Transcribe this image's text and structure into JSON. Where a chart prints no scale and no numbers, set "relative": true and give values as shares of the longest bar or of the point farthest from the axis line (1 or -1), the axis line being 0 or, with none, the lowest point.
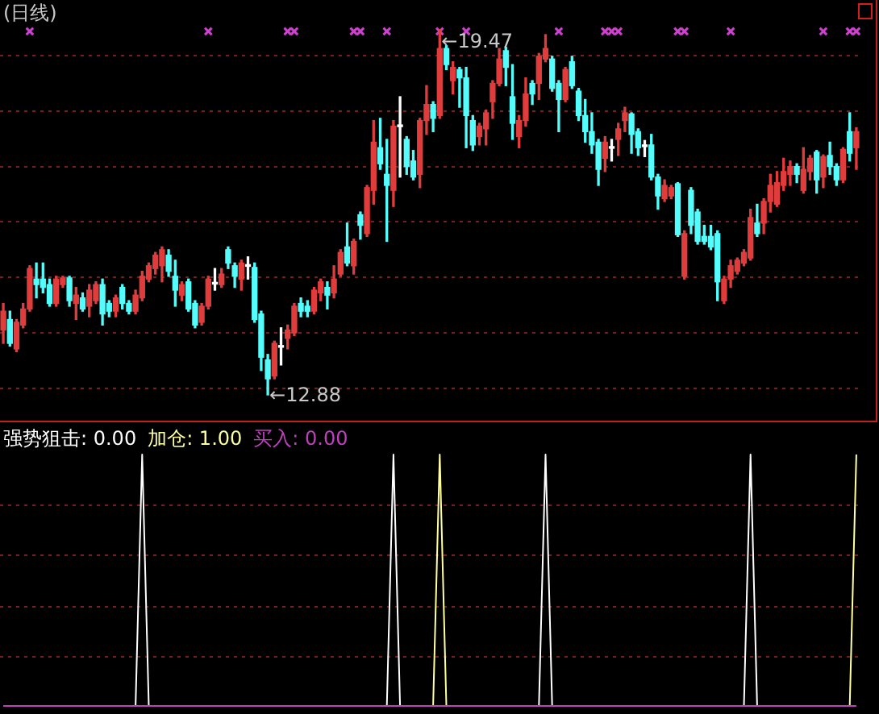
{
  "chart_data": [
    {
      "type": "candlestick",
      "title": "(日线)",
      "categories": [
        null,
        null,
        null,
        null,
        null,
        null,
        null,
        null,
        null,
        null,
        null,
        null,
        null,
        null,
        null,
        null,
        null,
        null,
        null,
        null,
        null,
        null,
        null,
        null,
        null,
        null,
        null,
        null,
        null,
        null,
        null,
        null,
        null,
        null,
        null,
        null,
        null,
        null,
        null,
        null,
        null,
        null,
        null,
        null,
        null,
        null,
        null,
        null,
        null,
        null,
        null,
        null,
        null,
        null,
        null,
        null,
        null,
        null,
        null,
        null,
        null,
        null,
        null,
        null,
        null,
        null,
        null,
        null,
        null,
        null,
        null,
        null,
        null,
        null,
        null,
        null,
        null,
        null,
        null,
        null,
        null,
        null,
        null,
        null,
        null,
        null,
        null,
        null,
        null,
        null,
        null,
        null,
        null,
        null,
        null,
        null,
        null,
        null,
        null,
        null,
        null,
        null,
        null,
        null,
        null,
        null,
        null,
        null,
        null,
        null,
        null,
        null,
        null,
        null,
        null,
        null,
        null,
        null,
        null,
        null,
        null,
        null,
        null,
        null,
        null,
        null,
        null,
        null,
        null,
        null
      ],
      "ohlc": [
        [
          14.05,
          14.53,
          13.81,
          14.39
        ],
        [
          14.24,
          14.39,
          13.76,
          13.81
        ],
        [
          13.71,
          14.24,
          13.66,
          14.19
        ],
        [
          14.14,
          14.53,
          14.09,
          14.43
        ],
        [
          14.43,
          15.21,
          14.39,
          15.16
        ],
        [
          14.97,
          15.26,
          14.63,
          14.87
        ],
        [
          14.97,
          15.26,
          14.72,
          14.82
        ],
        [
          14.87,
          14.97,
          14.48,
          14.53
        ],
        [
          14.53,
          15.02,
          14.48,
          14.97
        ],
        [
          14.87,
          15.02,
          14.82,
          14.99
        ],
        [
          14.99,
          15.02,
          14.48,
          14.58
        ],
        [
          14.53,
          14.82,
          14.24,
          14.68
        ],
        [
          14.63,
          14.72,
          14.39,
          14.43
        ],
        [
          14.48,
          14.87,
          14.29,
          14.77
        ],
        [
          14.58,
          14.92,
          14.53,
          14.87
        ],
        [
          14.87,
          14.97,
          14.14,
          14.34
        ],
        [
          14.53,
          14.58,
          14.29,
          14.39
        ],
        [
          14.39,
          14.68,
          14.29,
          14.63
        ],
        [
          14.82,
          14.87,
          14.43,
          14.53
        ],
        [
          14.53,
          14.58,
          14.34,
          14.39
        ],
        [
          14.39,
          14.77,
          14.34,
          14.68
        ],
        [
          14.63,
          15.11,
          14.58,
          15.02
        ],
        [
          14.97,
          15.26,
          14.92,
          15.21
        ],
        [
          15.16,
          15.45,
          15.06,
          15.4
        ],
        [
          15.21,
          15.55,
          14.92,
          15.5
        ],
        [
          15.4,
          15.5,
          15.02,
          15.11
        ],
        [
          15.02,
          15.31,
          14.48,
          14.77
        ],
        [
          14.68,
          14.92,
          14.58,
          14.87
        ],
        [
          14.92,
          14.97,
          14.39,
          14.43
        ],
        [
          14.53,
          14.58,
          14.09,
          14.14
        ],
        [
          14.19,
          14.53,
          14.14,
          14.48
        ],
        [
          14.48,
          15.02,
          14.43,
          14.97
        ],
        [
          14.88,
          15.16,
          14.77,
          14.91
        ],
        [
          14.87,
          15.16,
          14.82,
          15.06
        ],
        [
          15.5,
          15.55,
          15.16,
          15.26
        ],
        [
          15.21,
          15.26,
          14.82,
          15.02
        ],
        [
          14.97,
          15.31,
          14.77,
          15.26
        ],
        [
          15.2,
          15.37,
          14.97,
          15.23
        ],
        [
          15.18,
          15.26,
          14.19,
          14.24
        ],
        [
          14.34,
          14.39,
          13.32,
          13.56
        ],
        [
          13.51,
          13.61,
          12.88,
          13.17
        ],
        [
          13.22,
          13.85,
          13.17,
          13.81
        ],
        [
          13.74,
          14.09,
          13.42,
          13.77
        ],
        [
          13.9,
          14.14,
          13.71,
          14.05
        ],
        [
          14.0,
          14.53,
          13.95,
          14.48
        ],
        [
          14.53,
          14.63,
          14.29,
          14.39
        ],
        [
          14.48,
          14.58,
          14.29,
          14.39
        ],
        [
          14.39,
          14.82,
          14.34,
          14.77
        ],
        [
          14.72,
          14.97,
          14.58,
          14.92
        ],
        [
          14.82,
          14.92,
          14.43,
          14.68
        ],
        [
          14.72,
          15.21,
          14.63,
          14.97
        ],
        [
          15.06,
          15.5,
          15.02,
          15.45
        ],
        [
          15.55,
          15.98,
          15.21,
          15.26
        ],
        [
          15.21,
          15.69,
          15.06,
          15.65
        ],
        [
          16.13,
          16.18,
          15.69,
          15.94
        ],
        [
          15.79,
          16.66,
          15.74,
          16.62
        ],
        [
          16.57,
          17.83,
          16.32,
          17.44
        ],
        [
          17.34,
          17.87,
          16.95,
          17.05
        ],
        [
          16.86,
          17.49,
          15.65,
          16.66
        ],
        [
          16.57,
          17.83,
          16.28,
          17.73
        ],
        [
          17.72,
          18.26,
          16.81,
          17.75
        ],
        [
          17.49,
          17.54,
          16.86,
          17.0
        ],
        [
          17.1,
          17.29,
          16.76,
          16.81
        ],
        [
          16.86,
          17.87,
          16.62,
          17.83
        ],
        [
          17.83,
          18.46,
          17.58,
          18.12
        ],
        [
          18.12,
          18.17,
          17.63,
          17.87
        ],
        [
          17.92,
          19.47,
          17.87,
          19.13
        ],
        [
          19.13,
          19.18,
          18.75,
          18.84
        ],
        [
          18.55,
          18.89,
          18.31,
          18.79
        ],
        [
          18.75,
          18.79,
          18.07,
          18.6
        ],
        [
          18.6,
          18.79,
          17.34,
          17.92
        ],
        [
          17.83,
          17.92,
          17.29,
          17.39
        ],
        [
          17.54,
          17.78,
          17.39,
          17.73
        ],
        [
          17.68,
          18.02,
          17.39,
          17.97
        ],
        [
          18.17,
          18.55,
          17.87,
          18.5
        ],
        [
          18.5,
          19.13,
          18.46,
          18.94
        ],
        [
          19.09,
          19.15,
          18.46,
          18.79
        ],
        [
          18.26,
          18.84,
          17.49,
          17.78
        ],
        [
          17.54,
          17.92,
          17.34,
          17.83
        ],
        [
          17.83,
          18.6,
          17.73,
          18.31
        ],
        [
          18.5,
          18.55,
          18.12,
          18.31
        ],
        [
          18.5,
          19.04,
          18.21,
          18.99
        ],
        [
          18.94,
          19.38,
          18.89,
          19.13
        ],
        [
          18.94,
          18.99,
          18.36,
          18.41
        ],
        [
          18.5,
          18.55,
          17.63,
          18.21
        ],
        [
          18.21,
          18.79,
          18.17,
          18.75
        ],
        [
          18.89,
          18.99,
          18.41,
          18.46
        ],
        [
          18.36,
          18.41,
          17.83,
          17.92
        ],
        [
          17.92,
          18.21,
          17.44,
          17.63
        ],
        [
          17.63,
          17.97,
          17.24,
          17.39
        ],
        [
          17.44,
          17.49,
          16.66,
          16.95
        ],
        [
          17.15,
          17.54,
          16.91,
          17.44
        ],
        [
          17.33,
          17.49,
          17.1,
          17.36
        ],
        [
          17.49,
          17.78,
          17.2,
          17.68
        ],
        [
          17.83,
          18.07,
          17.63,
          17.97
        ],
        [
          17.95,
          17.97,
          17.24,
          17.58
        ],
        [
          17.63,
          17.68,
          17.2,
          17.34
        ],
        [
          17.36,
          17.47,
          17.18,
          17.39
        ],
        [
          17.39,
          17.58,
          16.76,
          16.81
        ],
        [
          16.81,
          16.86,
          16.23,
          16.47
        ],
        [
          16.42,
          16.76,
          16.37,
          16.66
        ],
        [
          16.47,
          16.66,
          16.42,
          16.62
        ],
        [
          16.69,
          16.71,
          15.74,
          15.77
        ],
        [
          15.02,
          15.84,
          14.97,
          15.79
        ],
        [
          16.57,
          16.62,
          15.79,
          15.94
        ],
        [
          16.18,
          16.23,
          15.6,
          15.65
        ],
        [
          15.74,
          15.94,
          15.6,
          15.65
        ],
        [
          15.74,
          15.94,
          15.5,
          15.55
        ],
        [
          15.79,
          15.84,
          14.58,
          14.92
        ],
        [
          14.58,
          15.02,
          14.53,
          14.97
        ],
        [
          14.97,
          15.31,
          14.82,
          15.21
        ],
        [
          15.11,
          15.35,
          15.06,
          15.31
        ],
        [
          15.26,
          15.5,
          15.21,
          15.45
        ],
        [
          15.35,
          16.23,
          15.31,
          16.08
        ],
        [
          15.98,
          16.32,
          15.74,
          15.79
        ],
        [
          15.98,
          16.42,
          15.79,
          16.37
        ],
        [
          16.37,
          16.86,
          16.18,
          16.66
        ],
        [
          16.32,
          16.91,
          16.28,
          16.71
        ],
        [
          16.66,
          17.15,
          16.57,
          16.91
        ],
        [
          16.86,
          17.1,
          16.66,
          17.0
        ],
        [
          17.0,
          17.05,
          16.71,
          16.86
        ],
        [
          16.57,
          17.34,
          16.52,
          16.95
        ],
        [
          16.91,
          17.2,
          16.76,
          17.15
        ],
        [
          17.26,
          17.29,
          16.52,
          16.76
        ],
        [
          16.81,
          17.21,
          16.62,
          17.18
        ],
        [
          17.2,
          17.44,
          16.86,
          17.0
        ],
        [
          17.0,
          17.05,
          16.66,
          16.76
        ],
        [
          16.76,
          17.34,
          16.71,
          17.31
        ],
        [
          17.63,
          17.97,
          17.1,
          17.24
        ],
        [
          17.34,
          17.7,
          16.95,
          17.63
        ]
      ],
      "colors": [
        "#e03c3c",
        "#54fcfc",
        "#e03c3c",
        "#e03c3c",
        "#e03c3c",
        "#54fcfc",
        "#54fcfc",
        "#54fcfc",
        "#e03c3c",
        "#e03c3c",
        "#54fcfc",
        "#e03c3c",
        "#54fcfc",
        "#e03c3c",
        "#e03c3c",
        "#54fcfc",
        "#54fcfc",
        "#e03c3c",
        "#54fcfc",
        "#54fcfc",
        "#e03c3c",
        "#e03c3c",
        "#e03c3c",
        "#e03c3c",
        "#e03c3c",
        "#54fcfc",
        "#54fcfc",
        "#e03c3c",
        "#54fcfc",
        "#54fcfc",
        "#e03c3c",
        "#e03c3c",
        "#ffffff",
        "#e03c3c",
        "#54fcfc",
        "#54fcfc",
        "#e03c3c",
        "#ffffff",
        "#54fcfc",
        "#54fcfc",
        "#54fcfc",
        "#e03c3c",
        "#ffffff",
        "#e03c3c",
        "#e03c3c",
        "#54fcfc",
        "#54fcfc",
        "#e03c3c",
        "#e03c3c",
        "#54fcfc",
        "#e03c3c",
        "#e03c3c",
        "#54fcfc",
        "#e03c3c",
        "#54fcfc",
        "#e03c3c",
        "#e03c3c",
        "#54fcfc",
        "#54fcfc",
        "#e03c3c",
        "#ffffff",
        "#54fcfc",
        "#54fcfc",
        "#e03c3c",
        "#e03c3c",
        "#54fcfc",
        "#e03c3c",
        "#54fcfc",
        "#e03c3c",
        "#54fcfc",
        "#54fcfc",
        "#54fcfc",
        "#e03c3c",
        "#e03c3c",
        "#e03c3c",
        "#e03c3c",
        "#54fcfc",
        "#54fcfc",
        "#e03c3c",
        "#e03c3c",
        "#54fcfc",
        "#e03c3c",
        "#e03c3c",
        "#54fcfc",
        "#54fcfc",
        "#e03c3c",
        "#54fcfc",
        "#54fcfc",
        "#54fcfc",
        "#54fcfc",
        "#54fcfc",
        "#e03c3c",
        "#ffffff",
        "#e03c3c",
        "#e03c3c",
        "#54fcfc",
        "#54fcfc",
        "#ffffff",
        "#54fcfc",
        "#54fcfc",
        "#e03c3c",
        "#e03c3c",
        "#54fcfc",
        "#e03c3c",
        "#54fcfc",
        "#54fcfc",
        "#54fcfc",
        "#54fcfc",
        "#54fcfc",
        "#e03c3c",
        "#e03c3c",
        "#e03c3c",
        "#e03c3c",
        "#e03c3c",
        "#54fcfc",
        "#e03c3c",
        "#e03c3c",
        "#e03c3c",
        "#e03c3c",
        "#e03c3c",
        "#54fcfc",
        "#e03c3c",
        "#e03c3c",
        "#54fcfc",
        "#e03c3c",
        "#54fcfc",
        "#54fcfc",
        "#e03c3c",
        "#54fcfc",
        "#e03c3c"
      ],
      "series": [
        {
          "type": "scatter",
          "color": "#d040d0",
          "values": [
            null,
            null,
            null,
            null,
            19.44,
            null,
            null,
            null,
            null,
            null,
            null,
            null,
            null,
            null,
            null,
            null,
            null,
            null,
            null,
            null,
            null,
            null,
            null,
            null,
            null,
            null,
            null,
            null,
            null,
            null,
            null,
            19.44,
            null,
            null,
            null,
            null,
            null,
            null,
            null,
            null,
            null,
            null,
            null,
            19.44,
            19.44,
            null,
            null,
            null,
            null,
            null,
            null,
            null,
            null,
            19.44,
            19.44,
            null,
            null,
            null,
            19.44,
            null,
            null,
            null,
            null,
            null,
            null,
            null,
            19.44,
            null,
            null,
            null,
            19.44,
            null,
            null,
            null,
            null,
            null,
            null,
            null,
            null,
            null,
            null,
            null,
            null,
            null,
            19.44,
            null,
            null,
            null,
            null,
            null,
            null,
            19.44,
            19.44,
            19.44,
            null,
            null,
            null,
            null,
            null,
            null,
            null,
            null,
            19.44,
            19.44,
            null,
            null,
            null,
            null,
            null,
            null,
            19.44,
            null,
            null,
            null,
            null,
            null,
            null,
            null,
            null,
            null,
            null,
            null,
            null,
            null,
            19.44,
            null,
            null,
            null,
            19.44,
            19.44
          ]
        }
      ],
      "marker": "cross",
      "yticks": [
        {
          "value": 13,
          "label": null
        },
        {
          "value": 14,
          "label": null
        },
        {
          "value": 15,
          "label": null
        },
        {
          "value": 16,
          "label": null
        },
        {
          "value": 17,
          "label": null
        },
        {
          "value": 18,
          "label": null
        },
        {
          "value": 19,
          "label": null
        }
      ],
      "grid": "y",
      "annotations": [
        "←19.47",
        "←12.88"
      ]
    },
    {
      "type": "line",
      "relative": true,
      "categories": [
        null,
        null,
        null,
        null,
        null,
        null,
        null,
        null,
        null,
        null,
        null,
        null,
        null,
        null,
        null,
        null,
        null,
        null,
        null,
        null,
        null,
        null,
        null,
        null,
        null,
        null,
        null,
        null,
        null,
        null,
        null,
        null,
        null,
        null,
        null,
        null,
        null,
        null,
        null,
        null,
        null,
        null,
        null,
        null,
        null,
        null,
        null,
        null,
        null,
        null,
        null,
        null,
        null,
        null,
        null,
        null,
        null,
        null,
        null,
        null,
        null,
        null,
        null,
        null,
        null,
        null,
        null,
        null,
        null,
        null,
        null,
        null,
        null,
        null,
        null,
        null,
        null,
        null,
        null,
        null,
        null,
        null,
        null,
        null,
        null,
        null,
        null,
        null,
        null,
        null,
        null,
        null,
        null,
        null,
        null,
        null,
        null,
        null,
        null,
        null,
        null,
        null,
        null,
        null,
        null,
        null,
        null,
        null,
        null,
        null,
        null,
        null,
        null,
        null,
        null,
        null,
        null,
        null,
        null,
        null,
        null,
        null,
        null,
        null,
        null,
        null,
        null,
        null,
        null,
        null
      ],
      "series": [
        {
          "name": "强势狙击: 0.00",
          "color": "#ffffff",
          "values": [
            null,
            null,
            null,
            null,
            null,
            null,
            null,
            null,
            null,
            null,
            null,
            null,
            null,
            null,
            null,
            null,
            null,
            null,
            null,
            null,
            0,
            1,
            0,
            null,
            null,
            null,
            null,
            null,
            null,
            null,
            null,
            null,
            null,
            null,
            null,
            null,
            null,
            null,
            null,
            null,
            null,
            null,
            null,
            null,
            null,
            null,
            null,
            null,
            null,
            null,
            null,
            null,
            null,
            null,
            null,
            null,
            null,
            null,
            0,
            1,
            0,
            null,
            null,
            null,
            null,
            null,
            null,
            null,
            null,
            null,
            null,
            null,
            null,
            null,
            null,
            null,
            null,
            null,
            null,
            null,
            null,
            0,
            1,
            0,
            null,
            null,
            null,
            null,
            null,
            null,
            null,
            null,
            null,
            null,
            null,
            null,
            null,
            null,
            null,
            null,
            null,
            null,
            null,
            null,
            null,
            null,
            null,
            null,
            null,
            null,
            null,
            null,
            0,
            1,
            0,
            null,
            null,
            null,
            null,
            null,
            null,
            null,
            null,
            null,
            null,
            null,
            null,
            null,
            null,
            null
          ]
        },
        {
          "name": "加仓: 1.00",
          "color": "#ffffa0",
          "values": [
            null,
            null,
            null,
            null,
            null,
            null,
            null,
            null,
            null,
            null,
            null,
            null,
            null,
            null,
            null,
            null,
            null,
            null,
            null,
            null,
            null,
            null,
            null,
            null,
            null,
            null,
            null,
            null,
            null,
            null,
            null,
            null,
            null,
            null,
            null,
            null,
            null,
            null,
            null,
            null,
            null,
            null,
            null,
            null,
            null,
            null,
            null,
            null,
            null,
            null,
            null,
            null,
            null,
            null,
            null,
            null,
            null,
            null,
            null,
            null,
            null,
            null,
            null,
            null,
            null,
            0,
            1,
            0,
            null,
            null,
            null,
            null,
            null,
            null,
            null,
            null,
            null,
            null,
            null,
            null,
            null,
            null,
            null,
            null,
            null,
            null,
            null,
            null,
            null,
            null,
            null,
            null,
            null,
            null,
            null,
            null,
            null,
            null,
            null,
            null,
            null,
            null,
            null,
            null,
            null,
            null,
            null,
            null,
            null,
            null,
            null,
            null,
            null,
            null,
            null,
            null,
            null,
            null,
            null,
            null,
            null,
            null,
            null,
            null,
            null,
            null,
            null,
            null,
            0,
            1
          ]
        },
        {
          "name": "买入: 0.00",
          "color": "#c040c0",
          "values": [
            0,
            0,
            0,
            0,
            0,
            0,
            0,
            0,
            0,
            0,
            0,
            0,
            0,
            0,
            0,
            0,
            0,
            0,
            0,
            0,
            0,
            0,
            0,
            0,
            0,
            0,
            0,
            0,
            0,
            0,
            0,
            0,
            0,
            0,
            0,
            0,
            0,
            0,
            0,
            0,
            0,
            0,
            0,
            0,
            0,
            0,
            0,
            0,
            0,
            0,
            0,
            0,
            0,
            0,
            0,
            0,
            0,
            0,
            0,
            0,
            0,
            0,
            0,
            0,
            0,
            0,
            0,
            0,
            0,
            0,
            0,
            0,
            0,
            0,
            0,
            0,
            0,
            0,
            0,
            0,
            0,
            0,
            0,
            0,
            0,
            0,
            0,
            0,
            0,
            0,
            0,
            0,
            0,
            0,
            0,
            0,
            0,
            0,
            0,
            0,
            0,
            0,
            0,
            0,
            0,
            0,
            0,
            0,
            0,
            0,
            0,
            0,
            0,
            0,
            0,
            0,
            0,
            0,
            0,
            0,
            0,
            0,
            0,
            0,
            0,
            0,
            0,
            0,
            0,
            0
          ]
        }
      ],
      "ref_lines": [
        {
          "axis": "y",
          "value": 0.2,
          "color": "#7a1e1e",
          "line_style": "dotted"
        },
        {
          "axis": "y",
          "value": 0.4,
          "color": "#7a1e1e",
          "line_style": "dotted"
        },
        {
          "axis": "y",
          "value": 0.6,
          "color": "#7a1e1e",
          "line_style": "dotted"
        },
        {
          "axis": "y",
          "value": 0.8,
          "color": "#7a1e1e",
          "line_style": "dotted"
        }
      ]
    }
  ]
}
